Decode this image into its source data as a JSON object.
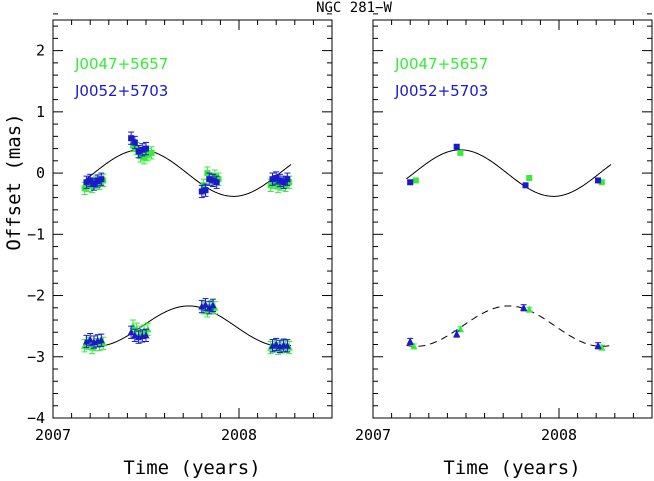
{
  "figure": {
    "title": "NGC 281−W",
    "xlabel": "Time (years)",
    "ylabel": "Offset (mas)"
  },
  "colors": {
    "green": "#33ee33",
    "blue": "#1a1acc",
    "model": "#000000"
  },
  "chart_data": [
    {
      "type": "scatter",
      "panel": "left",
      "title": "NGC 281−W",
      "xlabel": "Time (years)",
      "ylabel": "Offset (mas)",
      "xlim": [
        2007.0,
        2008.5
      ],
      "ylim": [
        -4,
        2.5
      ],
      "x_ticks": [
        2007,
        2008
      ],
      "y_ticks": [
        2,
        1,
        0,
        -1,
        -2,
        -3,
        -4
      ],
      "y_tick_labels": [
        "2",
        "1",
        "0",
        "−1",
        "−2",
        "−3",
        "−4"
      ],
      "grid": false,
      "legend": {
        "position": "top-left",
        "entries": [
          {
            "name": "J0047+5657",
            "color": "#33ee33"
          },
          {
            "name": "J0052+5703",
            "color": "#1a1acc"
          }
        ]
      },
      "series": [
        {
          "name": "J0047+5657 east",
          "color": "#33ee33",
          "marker": "square",
          "x": [
            2007.17,
            2007.19,
            2007.21,
            2007.23,
            2007.25,
            2007.27,
            2007.43,
            2007.45,
            2007.47,
            2007.49,
            2007.51,
            2007.53,
            2007.81,
            2007.83,
            2007.85,
            2007.87,
            2007.89,
            2008.17,
            2008.19,
            2008.21,
            2008.23,
            2008.25,
            2008.27
          ],
          "y": [
            -0.25,
            -0.2,
            -0.22,
            -0.15,
            -0.17,
            -0.12,
            0.45,
            0.4,
            0.28,
            0.25,
            0.3,
            0.33,
            -0.2,
            0.0,
            -0.1,
            -0.05,
            -0.1,
            -0.2,
            -0.15,
            -0.22,
            -0.18,
            -0.2,
            -0.15
          ],
          "err": 0.1
        },
        {
          "name": "J0052+5703 east",
          "color": "#1a1acc",
          "marker": "square",
          "x": [
            2007.18,
            2007.2,
            2007.22,
            2007.24,
            2007.26,
            2007.42,
            2007.44,
            2007.46,
            2007.48,
            2007.5,
            2007.8,
            2007.82,
            2007.84,
            2007.86,
            2007.88,
            2008.18,
            2008.2,
            2008.22,
            2008.24,
            2008.26
          ],
          "y": [
            -0.15,
            -0.12,
            -0.18,
            -0.13,
            -0.1,
            0.57,
            0.5,
            0.35,
            0.38,
            0.4,
            -0.3,
            -0.28,
            -0.1,
            -0.12,
            -0.15,
            -0.1,
            -0.08,
            -0.12,
            -0.15,
            -0.1
          ],
          "err": 0.1
        },
        {
          "name": "J0047+5657 north",
          "color": "#33ee33",
          "marker": "triangle",
          "x": [
            2007.17,
            2007.19,
            2007.21,
            2007.23,
            2007.25,
            2007.27,
            2007.43,
            2007.45,
            2007.47,
            2007.49,
            2007.51,
            2007.81,
            2007.83,
            2007.85,
            2007.87,
            2008.17,
            2008.19,
            2008.21,
            2008.23,
            2008.25,
            2008.27
          ],
          "y": [
            -2.82,
            -2.78,
            -2.85,
            -2.8,
            -2.8,
            -2.78,
            -2.5,
            -2.55,
            -2.6,
            -2.58,
            -2.55,
            -2.2,
            -2.25,
            -2.18,
            -2.2,
            -2.85,
            -2.82,
            -2.86,
            -2.84,
            -2.83,
            -2.85
          ],
          "err": 0.1
        },
        {
          "name": "J0052+5703 north",
          "color": "#1a1acc",
          "marker": "triangle",
          "x": [
            2007.18,
            2007.2,
            2007.22,
            2007.24,
            2007.26,
            2007.42,
            2007.44,
            2007.46,
            2007.48,
            2007.5,
            2007.8,
            2007.82,
            2007.84,
            2007.86,
            2008.18,
            2008.2,
            2008.22,
            2008.24,
            2008.26
          ],
          "y": [
            -2.75,
            -2.72,
            -2.76,
            -2.74,
            -2.73,
            -2.6,
            -2.65,
            -2.68,
            -2.66,
            -2.65,
            -2.18,
            -2.15,
            -2.2,
            -2.16,
            -2.82,
            -2.8,
            -2.83,
            -2.81,
            -2.82
          ],
          "err": 0.1
        }
      ],
      "models": [
        {
          "name": "east model",
          "style": "solid",
          "offset": 0.0,
          "amplitude": 0.38,
          "phase_peak": 2007.47,
          "period": 1.0
        },
        {
          "name": "north model",
          "style": "solid",
          "offset": -2.5,
          "amplitude": 0.33,
          "phase_peak": 2007.73,
          "period": 1.0
        }
      ]
    },
    {
      "type": "scatter",
      "panel": "right",
      "xlabel": "Time (years)",
      "xlim": [
        2007.0,
        2008.5
      ],
      "ylim": [
        -4,
        2.5
      ],
      "x_ticks": [
        2007,
        2008
      ],
      "grid": false,
      "legend": {
        "position": "top-left",
        "entries": [
          {
            "name": "J0047+5657",
            "color": "#33ee33"
          },
          {
            "name": "J0052+5703",
            "color": "#1a1acc"
          }
        ]
      },
      "series": [
        {
          "name": "J0047+5657 east",
          "color": "#33ee33",
          "marker": "square",
          "x": [
            2007.23,
            2007.47,
            2007.84,
            2008.23
          ],
          "y": [
            -0.12,
            0.33,
            -0.08,
            -0.15
          ],
          "err": 0.02
        },
        {
          "name": "J0052+5703 east",
          "color": "#1a1acc",
          "marker": "square",
          "x": [
            2007.2,
            2007.45,
            2007.82,
            2008.21
          ],
          "y": [
            -0.15,
            0.43,
            -0.2,
            -0.12
          ],
          "err": 0.03
        },
        {
          "name": "J0047+5657 north",
          "color": "#33ee33",
          "marker": "triangle",
          "x": [
            2007.22,
            2007.47,
            2007.84,
            2008.23
          ],
          "y": [
            -2.83,
            -2.55,
            -2.23,
            -2.85
          ],
          "err": 0.04
        },
        {
          "name": "J0052+5703 north",
          "color": "#1a1acc",
          "marker": "triangle",
          "x": [
            2007.2,
            2007.45,
            2007.81,
            2008.21
          ],
          "y": [
            -2.75,
            -2.63,
            -2.2,
            -2.82
          ],
          "err": 0.05
        }
      ],
      "models": [
        {
          "name": "east model",
          "style": "solid",
          "offset": 0.0,
          "amplitude": 0.38,
          "phase_peak": 2007.47,
          "period": 1.0
        },
        {
          "name": "north model",
          "style": "dashed",
          "offset": -2.5,
          "amplitude": 0.33,
          "phase_peak": 2007.73,
          "period": 1.0
        }
      ]
    }
  ]
}
